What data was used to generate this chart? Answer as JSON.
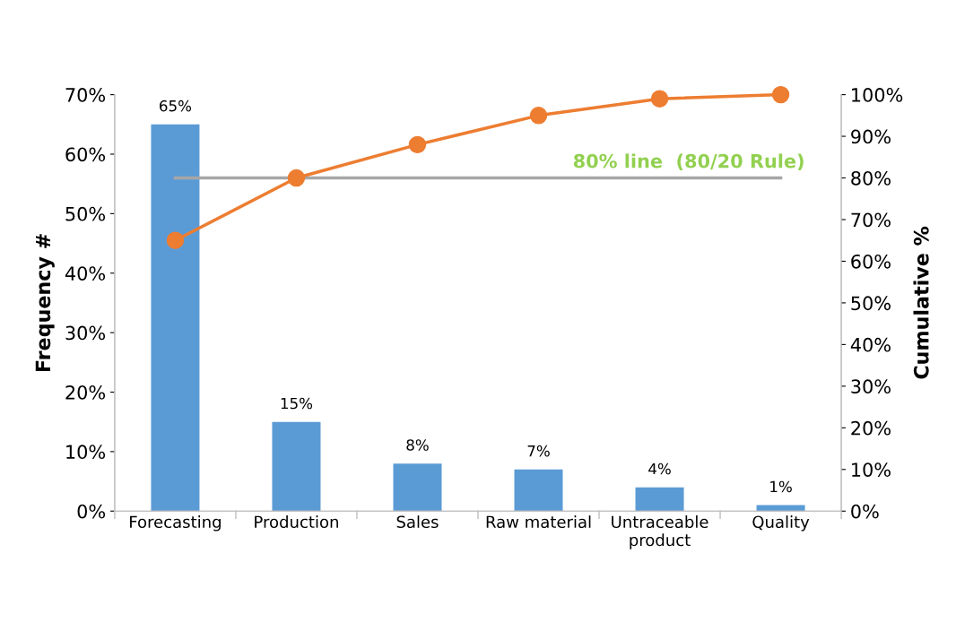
{
  "chart_data": {
    "type": "bar",
    "categories": [
      "Forecasting",
      "Production",
      "Sales",
      "Raw material",
      "Untraceable\nproduct",
      "Quality"
    ],
    "series": [
      {
        "color": "#5b9bd5",
        "values": [
          65,
          15,
          8,
          7,
          4,
          1
        ],
        "value_labels": [
          "65%",
          "15%",
          "8%",
          "7%",
          "4%",
          "1%"
        ]
      },
      {
        "type": "line",
        "axis": "y2",
        "color": "#ed7d31",
        "values": [
          65,
          80,
          88,
          95,
          99,
          100
        ]
      }
    ],
    "ylabel": "Frequency #",
    "y2label": "Cumulative %",
    "ylim": [
      0,
      70
    ],
    "yticks": [
      {
        "value": 0,
        "label": "0%"
      },
      {
        "value": 10,
        "label": "10%"
      },
      {
        "value": 20,
        "label": "20%"
      },
      {
        "value": 30,
        "label": "30%"
      },
      {
        "value": 40,
        "label": "40%"
      },
      {
        "value": 50,
        "label": "50%"
      },
      {
        "value": 60,
        "label": "60%"
      },
      {
        "value": 70,
        "label": "70%"
      }
    ],
    "y2lim": [
      0,
      100
    ],
    "y2ticks": [
      {
        "value": 0,
        "label": "0%"
      },
      {
        "value": 10,
        "label": "10%"
      },
      {
        "value": 20,
        "label": "20%"
      },
      {
        "value": 30,
        "label": "30%"
      },
      {
        "value": 40,
        "label": "40%"
      },
      {
        "value": 50,
        "label": "50%"
      },
      {
        "value": 60,
        "label": "60%"
      },
      {
        "value": 70,
        "label": "70%"
      },
      {
        "value": 80,
        "label": "80%"
      },
      {
        "value": 90,
        "label": "90%"
      },
      {
        "value": 100,
        "label": "100%"
      }
    ],
    "ref_lines": [
      {
        "axis": "y2",
        "value": 80,
        "label": "80% line  (80/20 Rule)",
        "color": "#a6a6a6"
      }
    ],
    "marker": "circle",
    "line_style": "solid",
    "grid": false,
    "legend": false
  }
}
